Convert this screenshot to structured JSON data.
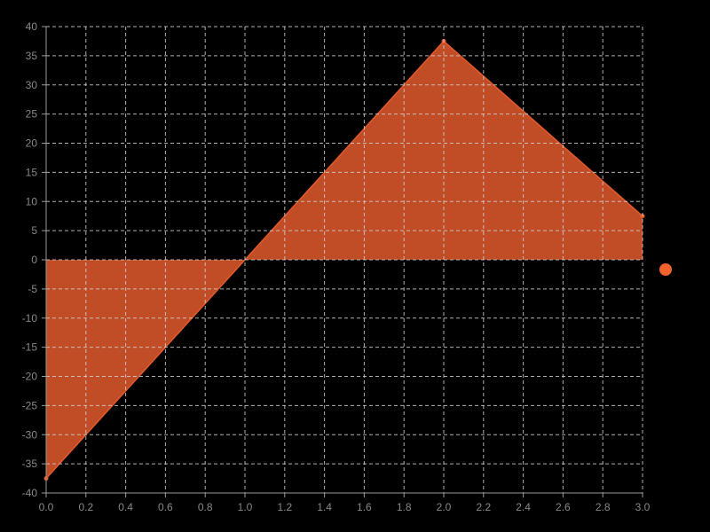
{
  "chart_data": {
    "type": "area",
    "x": [
      0,
      2,
      3
    ],
    "series": [
      {
        "values": [
          -37.5,
          37.5,
          7.5
        ]
      }
    ],
    "xlim": [
      0,
      3
    ],
    "ylim": [
      -40,
      40
    ],
    "x_ticks": [
      0.0,
      0.2,
      0.4,
      0.6,
      0.8,
      1.0,
      1.2,
      1.4,
      1.6,
      1.8,
      2.0,
      2.2,
      2.4,
      2.6,
      2.8,
      3.0
    ],
    "x_tick_labels": [
      "0.0",
      "0.2",
      "0.4",
      "0.6",
      "0.8",
      "1.0",
      "1.2",
      "1.4",
      "1.6",
      "1.8",
      "2.0",
      "2.2",
      "2.4",
      "2.6",
      "2.8",
      "3.0"
    ],
    "y_ticks": [
      40,
      35,
      30,
      25,
      20,
      15,
      10,
      5,
      0,
      -5,
      -10,
      -15,
      -20,
      -25,
      -30,
      -35,
      -40
    ],
    "y_tick_labels": [
      "40",
      "35",
      "30",
      "25",
      "20",
      "15",
      "10",
      "5",
      "0",
      "-5",
      "-10",
      "-15",
      "-20",
      "-25",
      "-30",
      "-35",
      "-40"
    ],
    "grid": true,
    "legend": {
      "position": "right",
      "marker": "circle"
    },
    "colors": {
      "fill": "#c14d27",
      "line": "#e35a2c",
      "legend_marker": "#f2622e",
      "background": "#000000"
    }
  }
}
